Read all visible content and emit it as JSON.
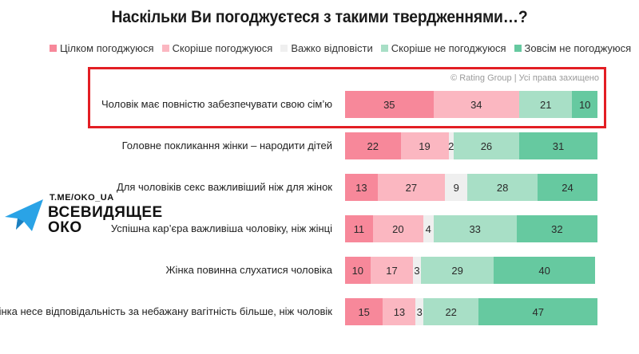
{
  "chart_data": {
    "type": "bar",
    "orientation": "horizontal",
    "stacked": true,
    "title": "Наскільки Ви погоджуєтеся з такими твердженнями…?",
    "copyright": "© Rating Group | Усі права захищено",
    "legend_position": "top",
    "series": [
      {
        "name": "Цілком погоджуюся",
        "color": "#f7889a",
        "values": [
          35,
          22,
          13,
          11,
          10,
          15
        ]
      },
      {
        "name": "Скоріше погоджуюся",
        "color": "#fbb7c1",
        "values": [
          34,
          19,
          27,
          20,
          17,
          13
        ]
      },
      {
        "name": "Важко відповісти",
        "color": "#efefef",
        "values": [
          0,
          2,
          9,
          4,
          3,
          3
        ]
      },
      {
        "name": "Скоріше не погоджуюся",
        "color": "#a8dfc6",
        "values": [
          21,
          26,
          28,
          33,
          29,
          22
        ]
      },
      {
        "name": "Зовсім не погоджуюся",
        "color": "#66c9a0",
        "values": [
          10,
          31,
          24,
          32,
          40,
          47
        ]
      }
    ],
    "categories": [
      "Чоловік має повністю забезпечувати свою сім’ю",
      "Головне покликання жінки – народити дітей",
      "Для чоловіків секс важливіший ніж для жінок",
      "Успішна кар’єра важливіша чоловіку, ніж жінці",
      "Жінка повинна слухатися чоловіка",
      "Жінка несе відповідальність за небажану вагітність більше, ніж чоловік"
    ],
    "highlighted_category_index": 0,
    "xlim": [
      0,
      100
    ]
  },
  "watermark": {
    "url": "T.ME/OKO_UA",
    "name_line1": "ВСЕВИДЯЩЕЕ",
    "name_line2": "ОКО",
    "icon": "telegram-plane-icon",
    "icon_color": "#2aa3e6"
  },
  "colors": {
    "highlight_border": "#e31e24"
  }
}
